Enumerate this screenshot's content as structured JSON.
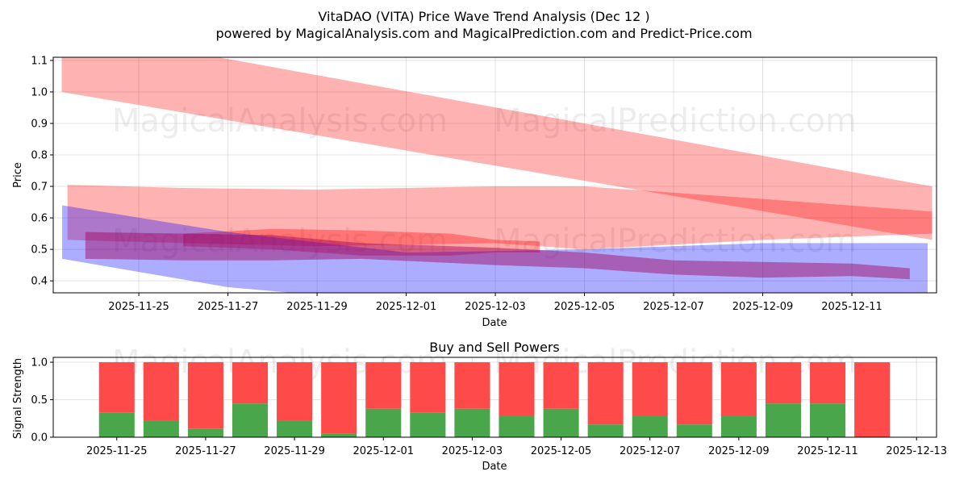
{
  "chart_data": [
    {
      "type": "area",
      "title": "VitaDAO (VITA) Price Wave Trend Analysis (Dec 12 )",
      "subtitle": "powered by MagicalAnalysis.com and MagicalPrediction.com and Predict-Price.com",
      "xlabel": "Date",
      "ylabel": "Price",
      "x_origin": "2025-11-25",
      "x_units": "days since x_origin",
      "xlim": [
        -1.92,
        17.9
      ],
      "ylim": [
        0.362,
        1.11
      ],
      "yticks": [
        "0.4",
        "0.5",
        "0.6",
        "0.7",
        "0.8",
        "0.9",
        "1.0",
        "1.1"
      ],
      "xticks": [
        "2025-11-25",
        "2025-11-27",
        "2025-11-29",
        "2025-12-01",
        "2025-12-03",
        "2025-12-05",
        "2025-12-07",
        "2025-12-09",
        "2025-12-11"
      ],
      "grid": true,
      "watermarks": [
        "MagicalAnalysis.com",
        "MagicalPrediction.com"
      ],
      "bands": [
        {
          "name": "upper-red-band",
          "color": "#ff0000",
          "opacity": 0.3,
          "x": [
            -1.73,
            17.8
          ],
          "upper": [
            1.2,
            0.7
          ],
          "lower": [
            1.0,
            0.53
          ]
        },
        {
          "name": "middle-red-band",
          "color": "#ff0000",
          "opacity": 0.3,
          "x": [
            -1.6,
            1,
            4,
            8,
            10,
            14,
            17.8
          ],
          "upper": [
            0.705,
            0.695,
            0.69,
            0.7,
            0.7,
            0.66,
            0.62
          ],
          "lower": [
            0.53,
            0.52,
            0.51,
            0.52,
            0.5,
            0.53,
            0.55
          ]
        },
        {
          "name": "red-core-band",
          "color": "#ff0000",
          "opacity": 0.35,
          "x": [
            1,
            3,
            5,
            7,
            8,
            9
          ],
          "upper": [
            0.55,
            0.565,
            0.56,
            0.55,
            0.53,
            0.525
          ],
          "lower": [
            0.51,
            0.5,
            0.48,
            0.48,
            0.49,
            0.49
          ]
        },
        {
          "name": "blue-band",
          "color": "#0000ff",
          "opacity": 0.32,
          "x": [
            -1.72,
            2,
            6,
            10,
            14,
            17.7
          ],
          "upper": [
            0.64,
            0.555,
            0.49,
            0.5,
            0.52,
            0.52
          ],
          "lower": [
            0.47,
            0.38,
            0.33,
            0.32,
            0.33,
            0.36
          ]
        },
        {
          "name": "purple-core-band",
          "color": "#a0005a",
          "opacity": 0.45,
          "x": [
            -1.2,
            1,
            3,
            5,
            8,
            10,
            12,
            14,
            16,
            17.3
          ],
          "upper": [
            0.555,
            0.55,
            0.545,
            0.52,
            0.505,
            0.49,
            0.465,
            0.46,
            0.455,
            0.44
          ],
          "lower": [
            0.47,
            0.465,
            0.465,
            0.47,
            0.45,
            0.44,
            0.42,
            0.41,
            0.415,
            0.405
          ]
        }
      ]
    },
    {
      "type": "bar",
      "title": "Buy and Sell Powers",
      "xlabel": "Date",
      "ylabel": "Signal Strength",
      "x_origin": "2025-11-25",
      "xlim": [
        -1.43,
        18.45
      ],
      "ylim": [
        0,
        1.065
      ],
      "yticks": [
        "0.0",
        "0.5",
        "1.0"
      ],
      "xticks": [
        "2025-11-25",
        "2025-11-27",
        "2025-11-29",
        "2025-12-01",
        "2025-12-03",
        "2025-12-05",
        "2025-12-07",
        "2025-12-09",
        "2025-12-11",
        "2025-12-13"
      ],
      "categories": [
        "2025-11-25",
        "2025-11-26",
        "2025-11-27",
        "2025-11-28",
        "2025-11-29",
        "2025-11-30",
        "2025-12-01",
        "2025-12-02",
        "2025-12-03",
        "2025-12-04",
        "2025-12-05",
        "2025-12-06",
        "2025-12-07",
        "2025-12-08",
        "2025-12-09",
        "2025-12-10",
        "2025-12-11",
        "2025-12-12"
      ],
      "series": [
        {
          "name": "Buy",
          "color": "#4aa64a",
          "values": [
            0.33,
            0.22,
            0.11,
            0.45,
            0.22,
            0.05,
            0.38,
            0.33,
            0.38,
            0.28,
            0.38,
            0.17,
            0.28,
            0.17,
            0.28,
            0.45,
            0.45,
            0.0
          ]
        },
        {
          "name": "Sell",
          "color": "#ff4a4a",
          "values": [
            0.67,
            0.78,
            0.89,
            0.55,
            0.78,
            0.95,
            0.62,
            0.67,
            0.62,
            0.72,
            0.62,
            0.83,
            0.72,
            0.83,
            0.72,
            0.55,
            0.55,
            1.0
          ]
        }
      ]
    }
  ]
}
